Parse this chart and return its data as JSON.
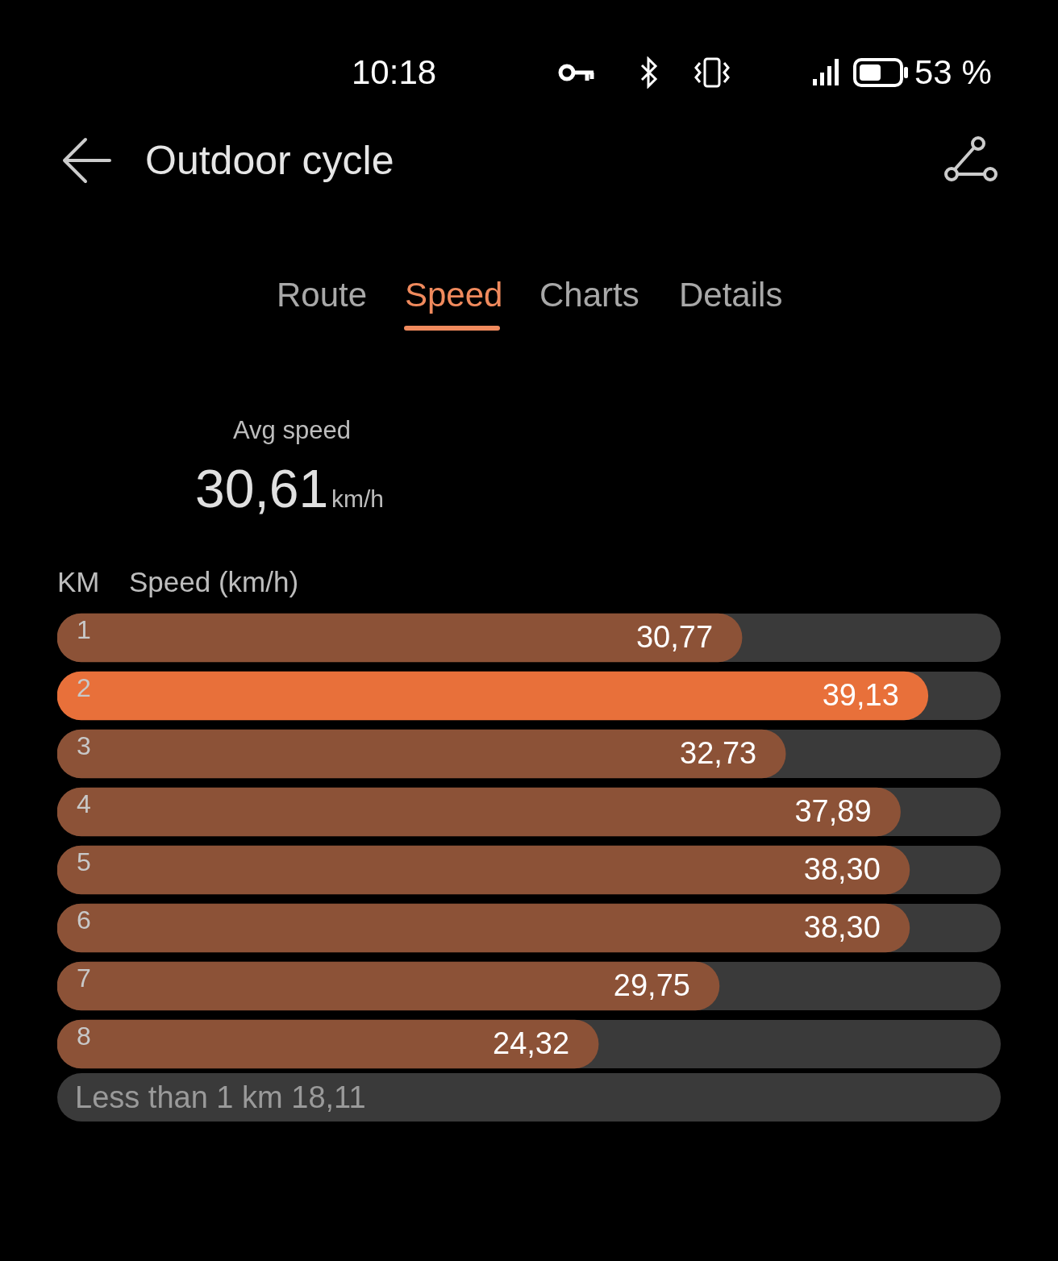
{
  "chart_data": {
    "type": "bar",
    "orientation": "horizontal",
    "title": "Outdoor cycle",
    "ylabel": "KM",
    "xlabel": "Speed (km/h)",
    "categories": [
      "1",
      "2",
      "3",
      "4",
      "5",
      "6",
      "7",
      "8"
    ],
    "values": [
      30.77,
      39.13,
      32.73,
      37.89,
      38.3,
      38.3,
      29.75,
      24.32
    ],
    "value_labels": [
      "30,77",
      "39,13",
      "32,73",
      "37,89",
      "38,30",
      "38,30",
      "29,75",
      "24,32"
    ],
    "colors": [
      "#8c5237",
      "#e8703a",
      "#8c5237",
      "#8c5237",
      "#8c5237",
      "#8c5237",
      "#8c5237",
      "#8c5237"
    ],
    "xlim": [
      0,
      42.4
    ],
    "tick_labels": "y",
    "annotations": [
      "10:18",
      "53 %",
      "Route",
      "Speed",
      "Charts",
      "Details",
      "Avg speed",
      "30,61",
      "km/h",
      "Less than 1 km 18,11"
    ]
  }
}
